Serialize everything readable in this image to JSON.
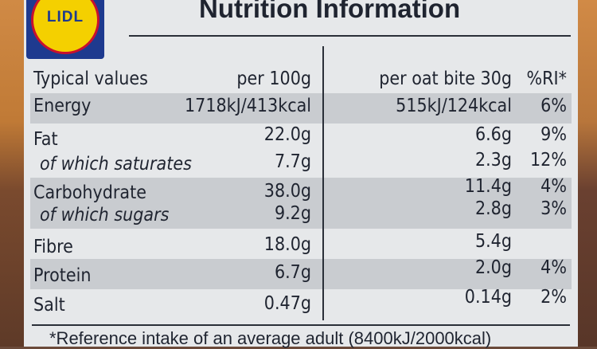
{
  "brand": {
    "logo_text": "LIDL"
  },
  "title": "Nutrition Information",
  "headers": {
    "label": "Typical values",
    "per100": "per 100g",
    "per_serving": "per oat bite 30g",
    "ri": "%RI*"
  },
  "rows": [
    {
      "label": "Energy",
      "per100": "1718kJ/413kcal",
      "per_serving": "515kJ/124kcal",
      "ri": "6%"
    },
    {
      "label": "Fat",
      "per100": "22.0g",
      "per_serving": "6.6g",
      "ri": "9%"
    },
    {
      "label": "of which saturates",
      "per100": "7.7g",
      "per_serving": "2.3g",
      "ri": "12%"
    },
    {
      "label": "Carbohydrate",
      "per100": "38.0g",
      "per_serving": "11.4g",
      "ri": "4%"
    },
    {
      "label": "of which sugars",
      "per100": "9.2g",
      "per_serving": "2.8g",
      "ri": "3%"
    },
    {
      "label": "Fibre",
      "per100": "18.0g",
      "per_serving": "5.4g",
      "ri": ""
    },
    {
      "label": "Protein",
      "per100": "6.7g",
      "per_serving": "2.0g",
      "ri": "4%"
    },
    {
      "label": "Salt",
      "per100": "0.47g",
      "per_serving": "0.14g",
      "ri": "2%"
    }
  ],
  "footnote": "*Reference intake of an average adult (8400kJ/2000kcal)",
  "colors": {
    "panel": "#e6e8ea",
    "shade": "#c9ccd0",
    "text": "#1f2430",
    "logo_blue": "#1e3a8f",
    "logo_yellow": "#f4d000",
    "logo_red": "#c8102e"
  }
}
